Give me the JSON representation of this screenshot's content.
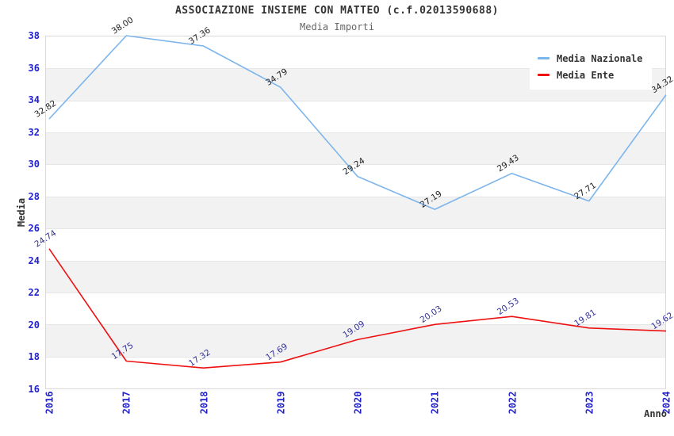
{
  "title": "ASSOCIAZIONE INSIEME CON MATTEO (c.f.02013590688)",
  "subtitle": "Media Importi",
  "chart_data": {
    "type": "line",
    "x": [
      "2016",
      "2017",
      "2018",
      "2019",
      "2020",
      "2021",
      "2022",
      "2023",
      "2024"
    ],
    "series": [
      {
        "name": "Media Nazionale",
        "color": "#7cb5ec",
        "label_color": "#222222",
        "values": [
          32.82,
          38.0,
          37.36,
          34.79,
          29.24,
          27.19,
          29.43,
          27.71,
          34.32
        ]
      },
      {
        "name": "Media Ente",
        "color": "#ee1111",
        "label_color": "#333399",
        "values": [
          24.74,
          17.75,
          17.32,
          17.69,
          19.09,
          20.03,
          20.53,
          19.81,
          19.62
        ]
      }
    ],
    "xlabel": "Anno",
    "ylabel": "Media",
    "ylim": [
      16,
      38
    ],
    "ytick_step": 2,
    "yticks": [
      16,
      18,
      20,
      22,
      24,
      26,
      28,
      30,
      32,
      34,
      36,
      38
    ],
    "legend_position": "top-right",
    "grid": true,
    "band_colors": [
      "#ffffff",
      "#f2f2f2"
    ],
    "grid_color": "#e6e6e6",
    "border_color": "#d9d9d9",
    "axis_label_color": "#2222cc",
    "title_color": "#333333",
    "subtitle_color": "#666666"
  }
}
